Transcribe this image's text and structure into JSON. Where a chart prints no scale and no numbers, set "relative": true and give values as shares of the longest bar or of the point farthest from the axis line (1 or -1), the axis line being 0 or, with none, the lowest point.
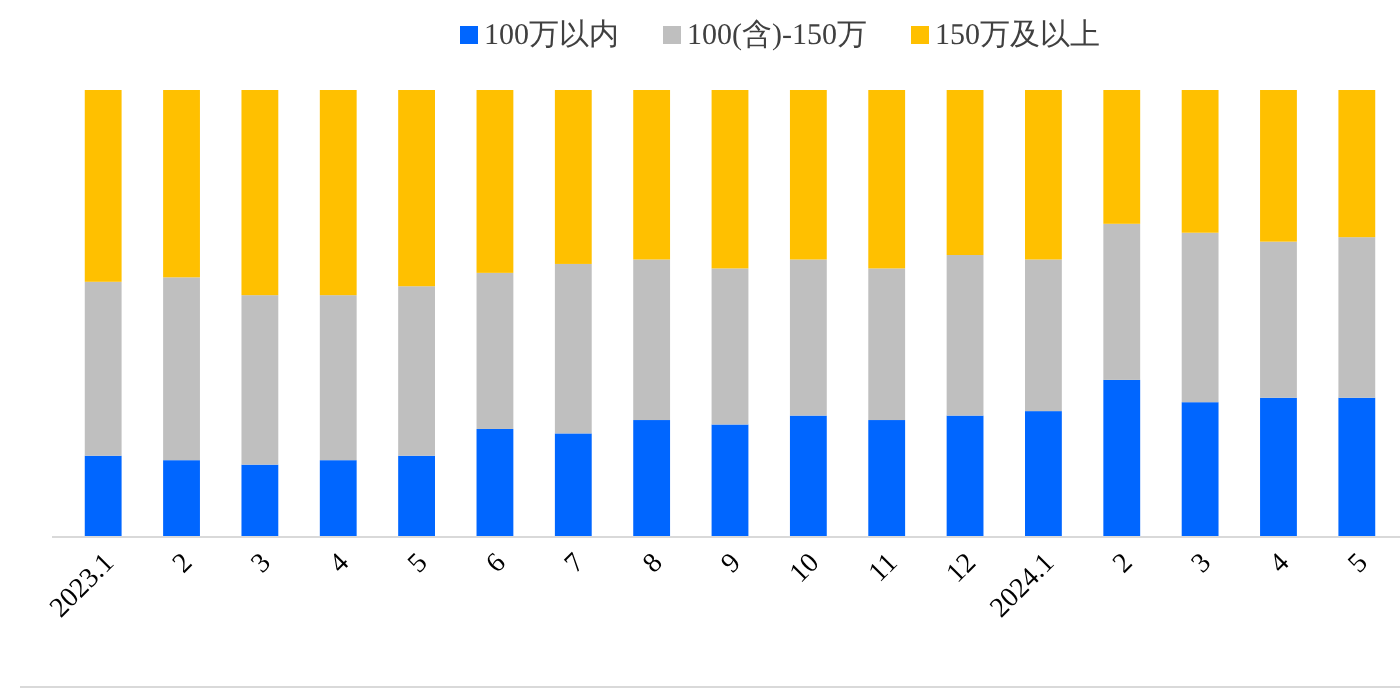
{
  "chart_data": {
    "type": "bar",
    "stacked": true,
    "relative": true,
    "legend": "top",
    "categories": [
      "2023.1",
      "2",
      "3",
      "4",
      "5",
      "6",
      "7",
      "8",
      "9",
      "10",
      "11",
      "12",
      "2024.1",
      "2",
      "3",
      "4",
      "5"
    ],
    "series": [
      {
        "name": "100万以内",
        "color": "#0066ff",
        "values": [
          0.18,
          0.17,
          0.16,
          0.17,
          0.18,
          0.24,
          0.23,
          0.26,
          0.25,
          0.27,
          0.26,
          0.27,
          0.28,
          0.35,
          0.3,
          0.31,
          0.31
        ]
      },
      {
        "name": "100(含)-150万",
        "color": "#bfbfbf",
        "values": [
          0.39,
          0.41,
          0.38,
          0.37,
          0.38,
          0.35,
          0.38,
          0.36,
          0.35,
          0.35,
          0.34,
          0.36,
          0.34,
          0.35,
          0.38,
          0.35,
          0.36
        ]
      },
      {
        "name": "150万及以上",
        "color": "#ffc000",
        "values": [
          0.43,
          0.42,
          0.46,
          0.46,
          0.44,
          0.41,
          0.39,
          0.38,
          0.4,
          0.38,
          0.4,
          0.37,
          0.38,
          0.3,
          0.32,
          0.34,
          0.33
        ]
      }
    ]
  }
}
